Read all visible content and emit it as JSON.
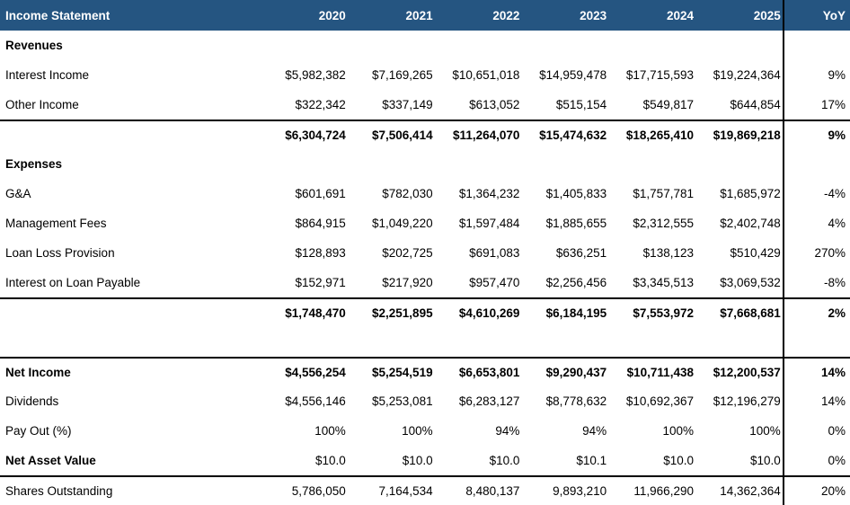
{
  "header": {
    "title": "Income Statement",
    "years": [
      "2020",
      "2021",
      "2022",
      "2023",
      "2024",
      "2025"
    ],
    "yoy_label": "YoY",
    "bg_color": "#255581",
    "text_color": "#FFFFFF"
  },
  "table": {
    "rows": [
      {
        "label": "Revenues",
        "values": [
          "",
          "",
          "",
          "",
          "",
          ""
        ],
        "yoy": "",
        "bold_label": true,
        "bold_values": false,
        "border_top": false
      },
      {
        "label": "Interest Income",
        "values": [
          "$5,982,382",
          "$7,169,265",
          "$10,651,018",
          "$14,959,478",
          "$17,715,593",
          "$19,224,364"
        ],
        "yoy": "9%",
        "bold_label": false,
        "bold_values": false,
        "border_top": false
      },
      {
        "label": "Other Income",
        "values": [
          "$322,342",
          "$337,149",
          "$613,052",
          "$515,154",
          "$549,817",
          "$644,854"
        ],
        "yoy": "17%",
        "bold_label": false,
        "bold_values": false,
        "border_top": false
      },
      {
        "label": "",
        "values": [
          "$6,304,724",
          "$7,506,414",
          "$11,264,070",
          "$15,474,632",
          "$18,265,410",
          "$19,869,218"
        ],
        "yoy": "9%",
        "bold_label": false,
        "bold_values": true,
        "border_top": true
      },
      {
        "label": "Expenses",
        "values": [
          "",
          "",
          "",
          "",
          "",
          ""
        ],
        "yoy": "",
        "bold_label": true,
        "bold_values": false,
        "border_top": false
      },
      {
        "label": "G&A",
        "values": [
          "$601,691",
          "$782,030",
          "$1,364,232",
          "$1,405,833",
          "$1,757,781",
          "$1,685,972"
        ],
        "yoy": "-4%",
        "bold_label": false,
        "bold_values": false,
        "border_top": false
      },
      {
        "label": "Management Fees",
        "values": [
          "$864,915",
          "$1,049,220",
          "$1,597,484",
          "$1,885,655",
          "$2,312,555",
          "$2,402,748"
        ],
        "yoy": "4%",
        "bold_label": false,
        "bold_values": false,
        "border_top": false
      },
      {
        "label": "Loan Loss Provision",
        "values": [
          "$128,893",
          "$202,725",
          "$691,083",
          "$636,251",
          "$138,123",
          "$510,429"
        ],
        "yoy": "270%",
        "bold_label": false,
        "bold_values": false,
        "border_top": false
      },
      {
        "label": "Interest on Loan Payable",
        "values": [
          "$152,971",
          "$217,920",
          "$957,470",
          "$2,256,456",
          "$3,345,513",
          "$3,069,532"
        ],
        "yoy": "-8%",
        "bold_label": false,
        "bold_values": false,
        "border_top": false
      },
      {
        "label": "",
        "values": [
          "$1,748,470",
          "$2,251,895",
          "$4,610,269",
          "$6,184,195",
          "$7,553,972",
          "$7,668,681"
        ],
        "yoy": "2%",
        "bold_label": false,
        "bold_values": true,
        "border_top": true
      },
      {
        "label": "",
        "values": [
          "",
          "",
          "",
          "",
          "",
          ""
        ],
        "yoy": "",
        "bold_label": false,
        "bold_values": false,
        "border_top": false
      },
      {
        "label": "Net Income",
        "values": [
          "$4,556,254",
          "$5,254,519",
          "$6,653,801",
          "$9,290,437",
          "$10,711,438",
          "$12,200,537"
        ],
        "yoy": "14%",
        "bold_label": true,
        "bold_values": true,
        "border_top": true
      },
      {
        "label": "Dividends",
        "values": [
          "$4,556,146",
          "$5,253,081",
          "$6,283,127",
          "$8,778,632",
          "$10,692,367",
          "$12,196,279"
        ],
        "yoy": "14%",
        "bold_label": false,
        "bold_values": false,
        "border_top": false
      },
      {
        "label": "Pay Out (%)",
        "values": [
          "100%",
          "100%",
          "94%",
          "94%",
          "100%",
          "100%"
        ],
        "yoy": "0%",
        "bold_label": false,
        "bold_values": false,
        "border_top": false
      },
      {
        "label": "Net Asset Value",
        "values": [
          "$10.0",
          "$10.0",
          "$10.0",
          "$10.1",
          "$10.0",
          "$10.0"
        ],
        "yoy": "0%",
        "bold_label": true,
        "bold_values": false,
        "border_top": false
      },
      {
        "label": "Shares Outstanding",
        "values": [
          "5,786,050",
          "7,164,534",
          "8,480,137",
          "9,893,210",
          "11,966,290",
          "14,362,364"
        ],
        "yoy": "20%",
        "bold_label": false,
        "bold_values": false,
        "border_top": true
      }
    ]
  }
}
